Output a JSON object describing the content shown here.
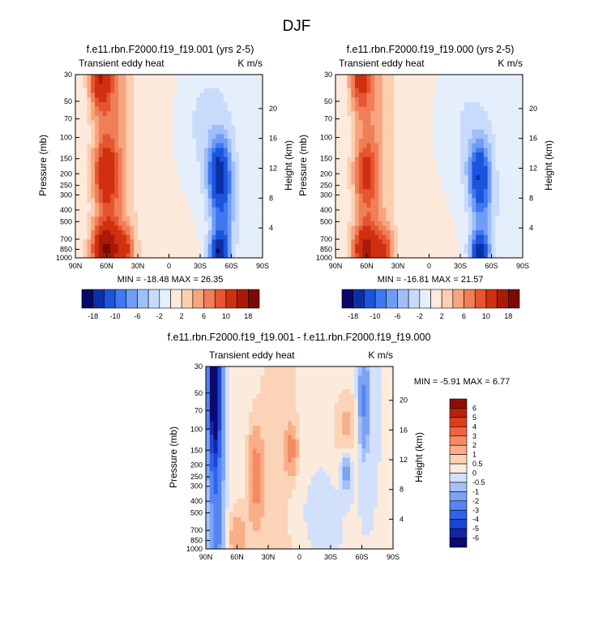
{
  "page": {
    "title": "DJF"
  },
  "colors": {
    "full_scale": [
      "#08086b",
      "#0d2fa5",
      "#1b54dd",
      "#3f78f0",
      "#6e9cf7",
      "#9fbff8",
      "#c8dbfb",
      "#e5eefb",
      "#fdeadc",
      "#fccfb0",
      "#f8a57f",
      "#f07e57",
      "#e75530",
      "#d0300f",
      "#a91b08",
      "#7c0a03"
    ],
    "diff_scale": [
      "#0a0a70",
      "#1226a8",
      "#1c45d6",
      "#2e63ea",
      "#5585f2",
      "#7aa2f5",
      "#a6c0f8",
      "#d2e0fb",
      "#fbebdc",
      "#fbd3b6",
      "#f9ae88",
      "#f58a61",
      "#ef6440",
      "#de3e1a",
      "#b6220a",
      "#8d1005"
    ]
  },
  "panels": [
    {
      "case": "f.e11.rbn.F2000.f19_f19.001 (yrs 2-5)",
      "var_label": "Transient eddy heat",
      "units": "K m/s",
      "y_label": "Pressure (mb)",
      "y2_label": "Height (km)",
      "minmax": "MIN = -18.48  MAX = 26.35"
    },
    {
      "case": "f.e11.rbn.F2000.f19_f19.000 (yrs 2-5)",
      "var_label": "Transient eddy heat",
      "units": "K m/s",
      "y_label": "Pressure (mb)",
      "y2_label": "Height (km)",
      "minmax": "MIN = -16.81  MAX = 21.57"
    },
    {
      "case": "f.e11.rbn.F2000.f19_f19.001 - f.e11.rbn.F2000.f19_f19.000",
      "var_label": "Transient eddy heat",
      "units": "K m/s",
      "y_label": "Pressure (mb)",
      "y2_label": "Height (km)",
      "minmax": "MIN = -5.91  MAX = 6.77"
    }
  ],
  "chart_data": [
    {
      "type": "heatmap",
      "title": "f.e11.rbn.F2000.f19_f19.001 (yrs 2-5)",
      "subtitle": "Transient eddy heat",
      "units": "K m/s",
      "xlabel": "",
      "ylabel": "Pressure (mb)",
      "y2label": "Height (km)",
      "x_ticks": [
        "90N",
        "60N",
        "30N",
        "0",
        "30S",
        "60S",
        "90S"
      ],
      "y_ticks": [
        30,
        50,
        70,
        100,
        150,
        200,
        250,
        300,
        400,
        500,
        700,
        850,
        1000
      ],
      "y2_ticks": [
        20,
        16,
        12,
        8,
        4
      ],
      "y_scale": "log",
      "min": -18.48,
      "max": 26.35,
      "colorbar_labels": [
        "-18",
        "-10",
        "-6",
        "-2",
        "2",
        "6",
        "10",
        "18"
      ],
      "features": [
        {
          "sign": "positive",
          "lat": 65,
          "pressure_range": [
            30,
            1000
          ],
          "peak": 26
        },
        {
          "sign": "negative",
          "lat": -47,
          "pressure_range": [
            60,
            1000
          ],
          "peak": -18
        }
      ]
    },
    {
      "type": "heatmap",
      "title": "f.e11.rbn.F2000.f19_f19.000 (yrs 2-5)",
      "subtitle": "Transient eddy heat",
      "units": "K m/s",
      "xlabel": "",
      "ylabel": "Pressure (mb)",
      "y2label": "Height (km)",
      "x_ticks": [
        "90N",
        "60N",
        "30N",
        "0",
        "30S",
        "60S",
        "90S"
      ],
      "y_ticks": [
        30,
        50,
        70,
        100,
        150,
        200,
        250,
        300,
        400,
        500,
        700,
        850,
        1000
      ],
      "y2_ticks": [
        20,
        16,
        12,
        8,
        4
      ],
      "y_scale": "log",
      "min": -16.81,
      "max": 21.57,
      "colorbar_labels": [
        "-18",
        "-10",
        "-6",
        "-2",
        "2",
        "6",
        "10",
        "18"
      ],
      "features": [
        {
          "sign": "positive",
          "lat": 65,
          "pressure_range": [
            30,
            1000
          ],
          "peak": 21
        },
        {
          "sign": "negative",
          "lat": -48,
          "pressure_range": [
            60,
            1000
          ],
          "peak": -16
        }
      ]
    },
    {
      "type": "heatmap",
      "title": "f.e11.rbn.F2000.f19_f19.001 - f.e11.rbn.F2000.f19_f19.000",
      "subtitle": "Transient eddy heat",
      "units": "K m/s",
      "xlabel": "",
      "ylabel": "Pressure (mb)",
      "y2label": "Height (km)",
      "x_ticks": [
        "90N",
        "60N",
        "30N",
        "0",
        "30S",
        "60S",
        "90S"
      ],
      "y_ticks": [
        30,
        50,
        70,
        100,
        150,
        200,
        250,
        300,
        400,
        500,
        700,
        850,
        1000
      ],
      "y2_ticks": [
        20,
        16,
        12,
        8,
        4
      ],
      "y_scale": "log",
      "min": -5.91,
      "max": 6.77,
      "colorbar_labels": [
        "6",
        "5",
        "4",
        "3",
        "2",
        "1",
        "0.5",
        "0",
        "-0.5",
        "-1",
        "-2",
        "-3",
        "-4",
        "-5",
        "-6"
      ],
      "features": [
        {
          "sign": "negative",
          "lat": 80,
          "pressure_range": [
            30,
            1000
          ],
          "peak": -6
        },
        {
          "sign": "positive",
          "lat": 40,
          "pressure_range": [
            150,
            1000
          ],
          "peak": 3
        },
        {
          "sign": "negative",
          "lat": -60,
          "pressure_range": [
            30,
            200
          ],
          "peak": -2
        }
      ]
    }
  ]
}
